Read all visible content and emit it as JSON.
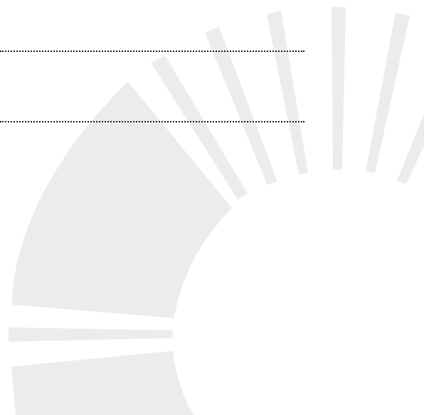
{
  "page": {
    "background_color": "#ffffff"
  },
  "watermark": {
    "icon": "sunburst-logo-watermark",
    "color": "#ececec"
  },
  "form": {
    "fill_lines": [
      {
        "value": ""
      },
      {
        "value": ""
      }
    ],
    "line_color": "#1a1a1a"
  }
}
